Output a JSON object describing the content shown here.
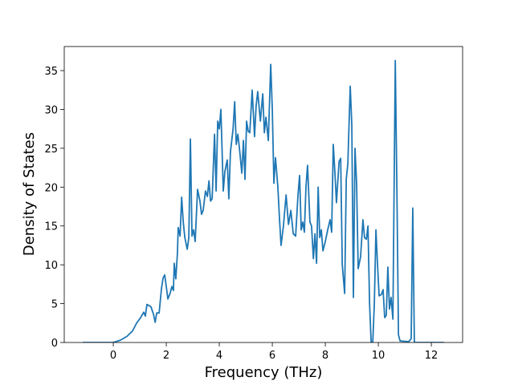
{
  "chart_data": {
    "type": "line",
    "xlabel": "Frequency (THz)",
    "ylabel": "Density of States",
    "color": "#1f77b4",
    "x": [
      -1.15,
      0,
      0.27,
      0.52,
      0.73,
      0.88,
      1.03,
      1.15,
      1.21,
      1.27,
      1.42,
      1.52,
      1.58,
      1.64,
      1.73,
      1.82,
      1.88,
      1.94,
      2.0,
      2.06,
      2.15,
      2.21,
      2.27,
      2.3,
      2.36,
      2.42,
      2.45,
      2.52,
      2.58,
      2.64,
      2.7,
      2.79,
      2.85,
      2.91,
      2.97,
      3.03,
      3.09,
      3.18,
      3.27,
      3.33,
      3.39,
      3.48,
      3.55,
      3.61,
      3.67,
      3.73,
      3.82,
      3.88,
      3.94,
      4.0,
      4.06,
      4.15,
      4.21,
      4.3,
      4.36,
      4.42,
      4.52,
      4.58,
      4.64,
      4.7,
      4.76,
      4.85,
      4.91,
      4.97,
      5.03,
      5.09,
      5.15,
      5.24,
      5.33,
      5.39,
      5.45,
      5.55,
      5.64,
      5.7,
      5.76,
      5.85,
      5.94,
      6.0,
      6.06,
      6.12,
      6.21,
      6.27,
      6.33,
      6.42,
      6.52,
      6.61,
      6.7,
      6.79,
      6.88,
      6.97,
      7.03,
      7.09,
      7.15,
      7.21,
      7.27,
      7.33,
      7.42,
      7.48,
      7.55,
      7.61,
      7.67,
      7.73,
      7.79,
      7.85,
      7.91,
      8.0,
      8.09,
      8.18,
      8.24,
      8.3,
      8.36,
      8.42,
      8.52,
      8.58,
      8.64,
      8.73,
      8.79,
      8.85,
      8.94,
      9.0,
      9.06,
      9.12,
      9.18,
      9.24,
      9.33,
      9.42,
      9.48,
      9.55,
      9.61,
      9.67,
      9.73,
      9.79,
      9.85,
      9.91,
      9.97,
      10.03,
      10.12,
      10.18,
      10.24,
      10.3,
      10.36,
      10.42,
      10.48,
      10.55,
      10.64,
      10.7,
      10.76,
      10.82,
      11.15,
      11.24,
      11.3,
      11.36,
      12.48
    ],
    "values": [
      0,
      0,
      0.3,
      0.8,
      1.5,
      2.5,
      3.2,
      3.9,
      3.4,
      4.9,
      4.6,
      3.6,
      2.6,
      3.8,
      3.8,
      7.0,
      8.3,
      8.7,
      7.2,
      5.6,
      6.4,
      7.2,
      6.7,
      10.2,
      8.2,
      11.5,
      14.8,
      13.7,
      18.7,
      15.5,
      13.5,
      12.0,
      13.5,
      26.2,
      13.7,
      14.5,
      13.0,
      19.7,
      18.2,
      16.5,
      17.0,
      19.5,
      18.8,
      20.8,
      18.2,
      18.5,
      26.8,
      19.5,
      28.5,
      27.5,
      30.0,
      19.5,
      22.0,
      23.5,
      18.5,
      24.5,
      27.5,
      31.0,
      25.5,
      26.8,
      25.0,
      21.8,
      26.0,
      21.0,
      28.5,
      27.2,
      27.0,
      32.5,
      26.5,
      30.5,
      32.3,
      28.5,
      32.0,
      27.0,
      29.0,
      26.0,
      35.8,
      30.0,
      20.5,
      23.8,
      20.0,
      16.0,
      12.5,
      15.0,
      19.0,
      15.2,
      17.0,
      14.0,
      13.7,
      19.0,
      21.5,
      14.5,
      15.5,
      14.2,
      20.0,
      22.8,
      15.5,
      15.0,
      10.8,
      14.0,
      10.2,
      20.0,
      13.5,
      14.5,
      11.8,
      13.0,
      14.5,
      15.8,
      14.2,
      25.5,
      22.0,
      18.0,
      23.3,
      23.7,
      10.0,
      6.3,
      21.0,
      23.0,
      33.0,
      28.0,
      5.8,
      25.0,
      20.5,
      9.5,
      11.0,
      15.8,
      13.5,
      13.3,
      15.0,
      5.0,
      0,
      0,
      5.0,
      14.5,
      10.0,
      6.0,
      6.2,
      6.8,
      3.2,
      3.5,
      9.7,
      4.3,
      5.8,
      3.0,
      36.3,
      20.0,
      1.0,
      0.2,
      0.1,
      0.5,
      17.3,
      0,
      0
    ],
    "xlim": [
      -1.85,
      13.18
    ],
    "ylim": [
      0,
      38.1
    ],
    "xticks": [
      0,
      2,
      4,
      6,
      8,
      10,
      12
    ],
    "yticks": [
      0,
      5,
      10,
      15,
      20,
      25,
      30,
      35
    ]
  }
}
